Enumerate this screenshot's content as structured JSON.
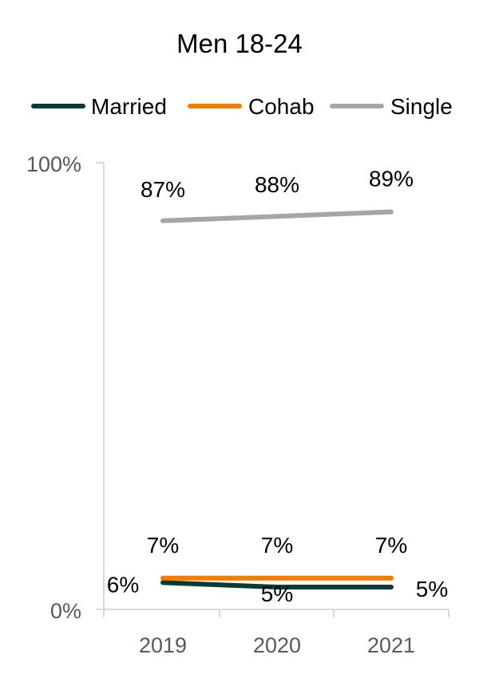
{
  "chart_data": {
    "type": "line",
    "title": "Men 18-24",
    "x": [
      "2019",
      "2020",
      "2021"
    ],
    "ylim": [
      0,
      100
    ],
    "yticks": [
      "0%",
      "100%"
    ],
    "legend_position": "top",
    "grid": false,
    "series": [
      {
        "name": "Married",
        "color": "#0b3a3a",
        "values": [
          6,
          5,
          5
        ],
        "labels": [
          "6%",
          "5%",
          "5%"
        ]
      },
      {
        "name": "Cohab",
        "color": "#f47c00",
        "values": [
          7,
          7,
          7
        ],
        "labels": [
          "7%",
          "7%",
          "7%"
        ]
      },
      {
        "name": "Single",
        "color": "#a6a6a6",
        "values": [
          87,
          88,
          89
        ],
        "labels": [
          "87%",
          "88%",
          "89%"
        ]
      }
    ]
  }
}
